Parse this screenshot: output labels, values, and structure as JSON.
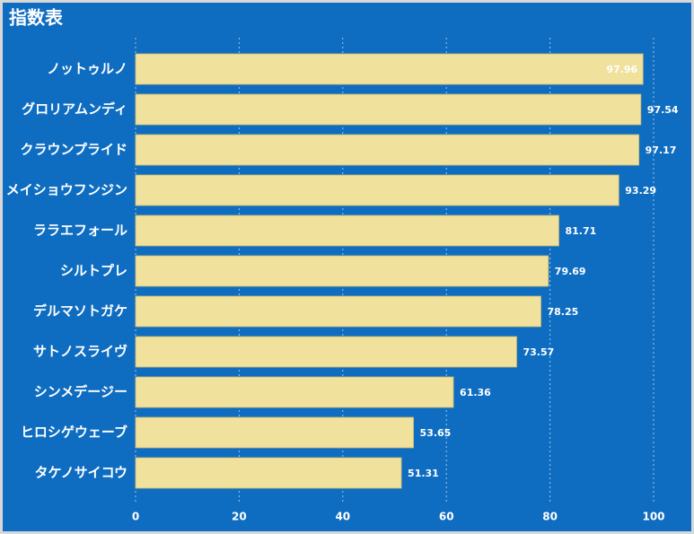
{
  "chart_data": {
    "type": "hbar",
    "title": "指数表",
    "categories": [
      "ノットゥルノ",
      "グロリアムンディ",
      "クラウンプライド",
      "メイショウフンジン",
      "ララエフォール",
      "シルトプレ",
      "デルマソトガケ",
      "サトノスライヴ",
      "シンメデージー",
      "ヒロシゲウェーブ",
      "タケノサイコウ"
    ],
    "values": [
      97.96,
      97.54,
      97.17,
      93.29,
      81.71,
      79.69,
      78.25,
      73.57,
      61.36,
      53.65,
      51.31
    ],
    "color": "#f0e19c",
    "xlim": [
      0,
      106
    ],
    "xticks": [
      0,
      20,
      40,
      60,
      80,
      100
    ],
    "grid": true
  }
}
